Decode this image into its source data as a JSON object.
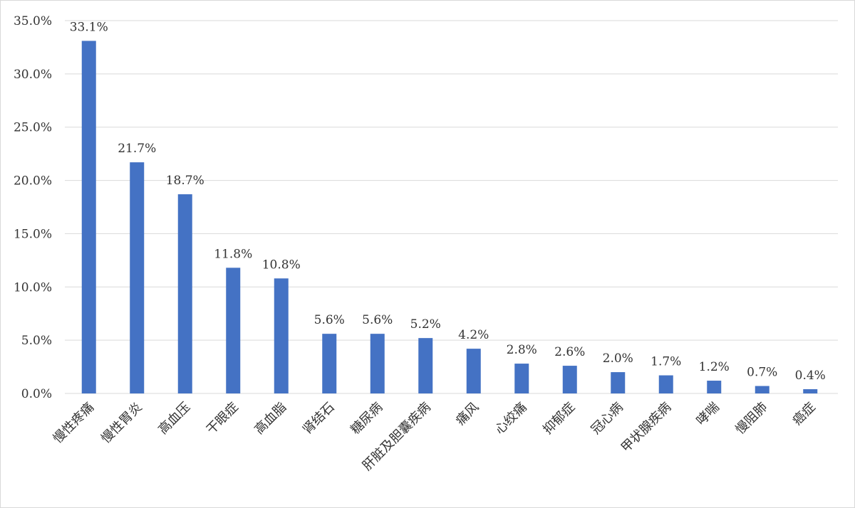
{
  "chart_data": {
    "type": "bar",
    "categories": [
      "慢性疼痛",
      "慢性胃炎",
      "高血压",
      "干眼症",
      "高血脂",
      "肾结石",
      "糖尿病",
      "肝脏及胆囊疾病",
      "痛风",
      "心绞痛",
      "抑郁症",
      "冠心病",
      "甲状腺疾病",
      "哮喘",
      "慢阻肺",
      "癌症"
    ],
    "values": [
      33.1,
      21.7,
      18.7,
      11.8,
      10.8,
      5.6,
      5.6,
      5.2,
      4.2,
      2.8,
      2.6,
      2.0,
      1.7,
      1.2,
      0.7,
      0.4
    ],
    "data_labels": [
      "33.1%",
      "21.7%",
      "18.7%",
      "11.8%",
      "10.8%",
      "5.6%",
      "5.6%",
      "5.2%",
      "4.2%",
      "2.8%",
      "2.6%",
      "2.0%",
      "1.7%",
      "1.2%",
      "0.7%",
      "0.4%"
    ],
    "y_ticks": [
      0,
      5,
      10,
      15,
      20,
      25,
      30,
      35
    ],
    "y_tick_labels": [
      "0.0%",
      "5.0%",
      "10.0%",
      "15.0%",
      "20.0%",
      "25.0%",
      "30.0%",
      "35.0%"
    ],
    "ylim": [
      0,
      35
    ],
    "grid": true,
    "legend": "none",
    "bar_color": "#4472c4",
    "grid_color": "#d9d9d9"
  }
}
